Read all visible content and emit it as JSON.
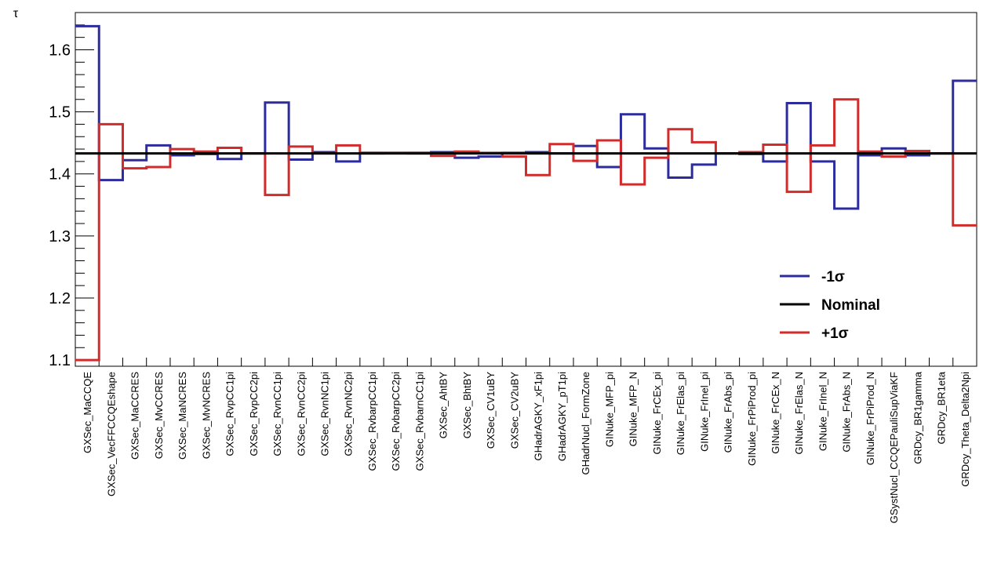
{
  "chart_data": {
    "type": "line",
    "title": "",
    "xlabel": "",
    "ylabel": "τ",
    "ylim": [
      1.09,
      1.66
    ],
    "yticks": [
      "1.1",
      "1.2",
      "1.3",
      "1.4",
      "1.5",
      "1.6"
    ],
    "grid": false,
    "legend_position": "right",
    "colors": {
      "minus": "#2c2c9c",
      "nominal": "#000000",
      "plus": "#d12c2c"
    },
    "categories": [
      "GXSec_MaCCQE",
      "GXSec_VecFFCCQEshape",
      "GXSec_MaCCRES",
      "GXSec_MvCCRES",
      "GXSec_MaNCRES",
      "GXSec_MvNCRES",
      "GXSec_RvpCC1pi",
      "GXSec_RvpCC2pi",
      "GXSec_RvnCC1pi",
      "GXSec_RvnCC2pi",
      "GXSec_RvnNC1pi",
      "GXSec_RvnNC2pi",
      "GXSec_RvbarpCC1pi",
      "GXSec_RvbarpCC2pi",
      "GXSec_RvbarnCC1pi",
      "GXSec_AhtBY",
      "GXSec_BhtBY",
      "GXSec_CV1uBY",
      "GXSec_CV2uBY",
      "GHadrAGKY_xF1pi",
      "GHadrAGKY_pT1pi",
      "GHadrNucl_FormZone",
      "GINuke_MFP_pi",
      "GINuke_MFP_N",
      "GINuke_FrCEx_pi",
      "GINuke_FrElas_pi",
      "GINuke_FrInel_pi",
      "GINuke_FrAbs_pi",
      "GINuke_FrPiProd_pi",
      "GINuke_FrCEx_N",
      "GINuke_FrElas_N",
      "GINuke_FrInel_N",
      "GINuke_FrAbs_N",
      "GINuke_FrPiProd_N",
      "GSystNucl_CCQEPauliSupViaKF",
      "GRDcy_BR1gamma",
      "GRDcy_BR1eta",
      "GRDcy_Theta_Delta2Npi"
    ],
    "nominal": 1.433,
    "series": [
      {
        "name": "-1σ",
        "key": "minus",
        "values": [
          1.638,
          1.39,
          1.422,
          1.446,
          1.43,
          1.432,
          1.424,
          1.433,
          1.515,
          1.423,
          1.435,
          1.42,
          1.434,
          1.434,
          1.434,
          1.435,
          1.426,
          1.428,
          1.434,
          1.435,
          1.433,
          1.445,
          1.411,
          1.496,
          1.441,
          1.394,
          1.415,
          1.433,
          1.432,
          1.42,
          1.514,
          1.42,
          1.344,
          1.43,
          1.441,
          1.43,
          1.433,
          1.55
        ]
      },
      {
        "name": "+1σ",
        "key": "plus",
        "values": [
          1.1,
          1.48,
          1.409,
          1.411,
          1.44,
          1.436,
          1.442,
          1.433,
          1.366,
          1.444,
          1.433,
          1.446,
          1.433,
          1.434,
          1.433,
          1.429,
          1.436,
          1.434,
          1.428,
          1.398,
          1.448,
          1.421,
          1.454,
          1.383,
          1.426,
          1.472,
          1.451,
          1.433,
          1.435,
          1.447,
          1.371,
          1.446,
          1.52,
          1.436,
          1.428,
          1.437,
          1.433,
          1.317
        ]
      }
    ],
    "legend": [
      {
        "label": "-1σ",
        "key": "minus"
      },
      {
        "label": "Nominal",
        "key": "nominal"
      },
      {
        "label": "+1σ",
        "key": "plus"
      }
    ]
  }
}
